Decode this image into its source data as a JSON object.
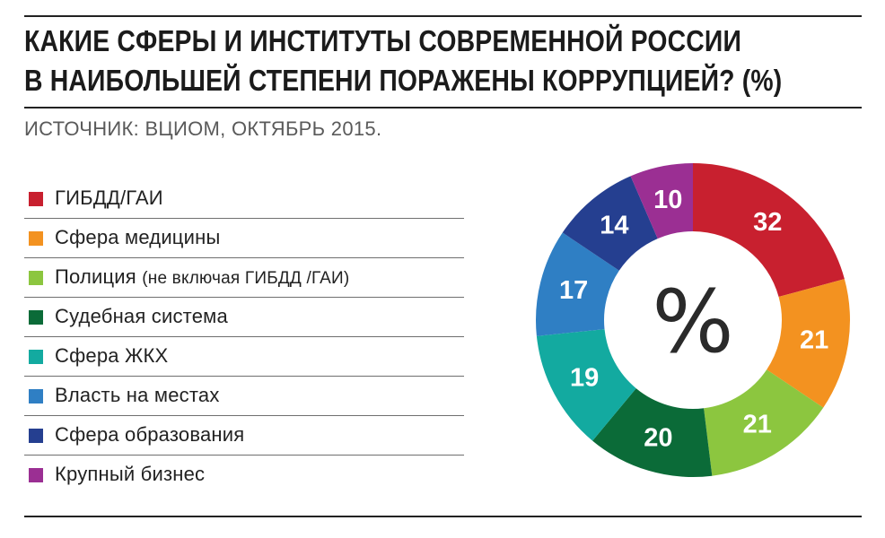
{
  "header": {
    "title_line1": "КАКИЕ СФЕРЫ И ИНСТИТУТЫ СОВРЕМЕННОЙ РОССИИ",
    "title_line2": "В НАИБОЛЬШЕЙ СТЕПЕНИ ПОРАЖЕНЫ КОРРУПЦИЕЙ? (%)",
    "source": "ИСТОЧНИК: ВЦИОМ, ОКТЯБРЬ 2015."
  },
  "chart_data": {
    "type": "pie",
    "donut": true,
    "center_text": "%",
    "title": "КАКИЕ СФЕРЫ И ИНСТИТУТЫ СОВРЕМЕННОЙ РОССИИ В НАИБОЛЬШЕЙ СТЕПЕНИ ПОРАЖЕНЫ КОРРУПЦИЕЙ? (%)",
    "legend_position": "left",
    "slices": [
      {
        "label": "ГИБДД/ГАИ",
        "value": 32,
        "color": "#c8202f"
      },
      {
        "label": "Сфера медицины",
        "value": 21,
        "color": "#f39220"
      },
      {
        "label": "Полиция",
        "note": "(не включая ГИБДД /ГАИ)",
        "value": 21,
        "color": "#8cc63f"
      },
      {
        "label": "Судебная система",
        "value": 20,
        "color": "#0b6b38"
      },
      {
        "label": "Сфера ЖКХ",
        "value": 19,
        "color": "#13aaa0"
      },
      {
        "label": "Власть на местах",
        "value": 17,
        "color": "#2f7fc4"
      },
      {
        "label": "Сфера образования",
        "value": 14,
        "color": "#253f90"
      },
      {
        "label": "Крупный бизнес",
        "value": 10,
        "color": "#9b2f93"
      }
    ]
  }
}
